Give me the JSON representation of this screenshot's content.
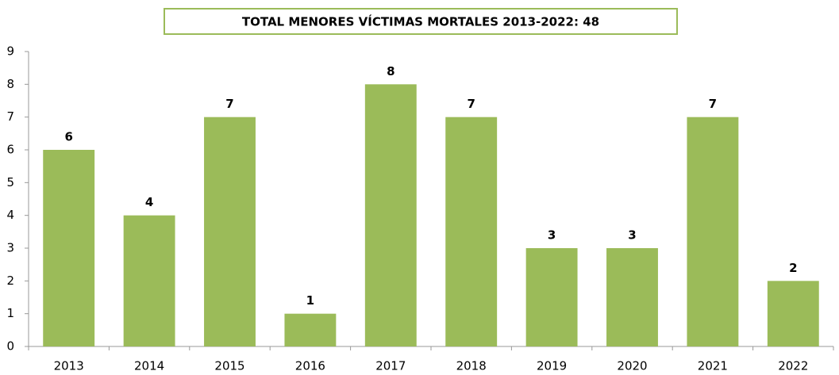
{
  "chart_data": {
    "type": "bar",
    "title": "TOTAL MENORES VÍCTIMAS MORTALES 2013-2022: 48",
    "categories": [
      "2013",
      "2014",
      "2015",
      "2016",
      "2017",
      "2018",
      "2019",
      "2020",
      "2021",
      "2022"
    ],
    "values": [
      6,
      4,
      7,
      1,
      8,
      7,
      3,
      3,
      7,
      2
    ],
    "color": "#9bbb59",
    "ylim": [
      0,
      9
    ],
    "yticks": [
      0,
      1,
      2,
      3,
      4,
      5,
      6,
      7,
      8,
      9
    ],
    "grid": false
  }
}
